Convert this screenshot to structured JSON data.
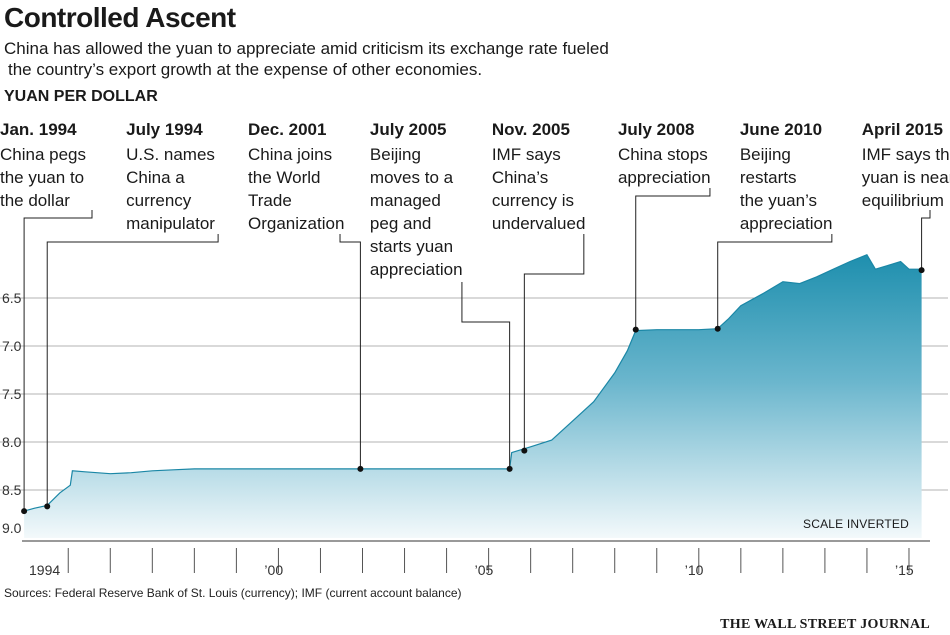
{
  "chart_data": {
    "type": "area",
    "title": "Controlled Ascent",
    "subtitle_lines": [
      "China has allowed the yuan to appreciate amid criticism its exchange rate fueled",
      "the country’s export growth at the expense of other economies."
    ],
    "ylabel": "YUAN PER DOLLAR",
    "y_inverted": true,
    "ylim": [
      6.0,
      9.0
    ],
    "yticks": [
      "6.5",
      "7.0",
      "7.5",
      "8.0",
      "8.5",
      "9.0"
    ],
    "xlim": [
      1993.9,
      2015.5
    ],
    "xticks": [
      {
        "label": "1994",
        "value": 1994.4
      },
      {
        "label": "’00",
        "value": 2000
      },
      {
        "label": "’05",
        "value": 2005
      },
      {
        "label": "’10",
        "value": 2010
      },
      {
        "label": "’15",
        "value": 2015
      }
    ],
    "series": [
      {
        "name": "Yuan per dollar",
        "points": [
          [
            1993.95,
            8.72
          ],
          [
            1994.2,
            8.69
          ],
          [
            1994.5,
            8.66
          ],
          [
            1994.8,
            8.53
          ],
          [
            1995.05,
            8.45
          ],
          [
            1995.1,
            8.3
          ],
          [
            1995.4,
            8.31
          ],
          [
            1996.0,
            8.33
          ],
          [
            1996.5,
            8.32
          ],
          [
            1997.0,
            8.3
          ],
          [
            1997.5,
            8.29
          ],
          [
            1998.0,
            8.28
          ],
          [
            2000.0,
            8.28
          ],
          [
            2002.0,
            8.28
          ],
          [
            2004.0,
            8.28
          ],
          [
            2005.5,
            8.28
          ],
          [
            2005.55,
            8.11
          ],
          [
            2006.0,
            8.05
          ],
          [
            2006.5,
            7.98
          ],
          [
            2007.0,
            7.78
          ],
          [
            2007.5,
            7.58
          ],
          [
            2008.0,
            7.28
          ],
          [
            2008.3,
            7.05
          ],
          [
            2008.5,
            6.84
          ],
          [
            2009.0,
            6.83
          ],
          [
            2009.5,
            6.83
          ],
          [
            2010.0,
            6.83
          ],
          [
            2010.45,
            6.82
          ],
          [
            2010.7,
            6.72
          ],
          [
            2011.0,
            6.58
          ],
          [
            2011.5,
            6.46
          ],
          [
            2012.0,
            6.33
          ],
          [
            2012.4,
            6.35
          ],
          [
            2012.8,
            6.28
          ],
          [
            2013.2,
            6.2
          ],
          [
            2013.6,
            6.12
          ],
          [
            2014.0,
            6.05
          ],
          [
            2014.2,
            6.2
          ],
          [
            2014.5,
            6.16
          ],
          [
            2014.8,
            6.12
          ],
          [
            2015.0,
            6.2
          ],
          [
            2015.3,
            6.2
          ]
        ]
      }
    ],
    "events": [
      {
        "date": "Jan. 1994",
        "lines": [
          "China pegs",
          "the yuan to",
          "the dollar"
        ],
        "x": 1993.95,
        "y": 8.72,
        "text_x": 1993.9
      },
      {
        "date": "July 1994",
        "lines": [
          "U.S. names",
          "China a",
          "currency",
          "manipulator"
        ],
        "x": 1994.5,
        "y": 8.67,
        "text_x": 1996.9
      },
      {
        "date": "Dec. 2001",
        "lines": [
          "China joins",
          "the World",
          "Trade",
          "Organization"
        ],
        "x": 2001.95,
        "y": 8.28,
        "text_x": 1999.8
      },
      {
        "date": "July 2005",
        "lines": [
          "Beijing",
          "moves to a",
          "managed",
          "peg and",
          "starts yuan",
          "appreciation"
        ],
        "x": 2005.5,
        "y": 8.28,
        "text_x": 2002.7
      },
      {
        "date": "Nov. 2005",
        "lines": [
          "IMF says",
          "China’s",
          "currency is",
          "undervalued"
        ],
        "x": 2005.85,
        "y": 8.09,
        "text_x": 2005.6
      },
      {
        "date": "July 2008",
        "lines": [
          "China stops",
          "appreciation"
        ],
        "x": 2008.5,
        "y": 6.83,
        "text_x": 2008.6
      },
      {
        "date": "June 2010",
        "lines": [
          "Beijing",
          "restarts",
          "the yuan’s",
          "appreciation"
        ],
        "x": 2010.45,
        "y": 6.82,
        "text_x": 2011.5
      },
      {
        "date": "April 2015",
        "lines": [
          "IMF says the",
          "yuan is near",
          "equilibrium"
        ],
        "x": 2015.3,
        "y": 6.21,
        "text_x": 2014.4
      }
    ],
    "annotation": "SCALE INVERTED"
  },
  "source": "Sources: Federal Reserve Bank of St. Louis (currency); IMF (current account balance)",
  "brand": "THE WALL STREET JOURNAL"
}
